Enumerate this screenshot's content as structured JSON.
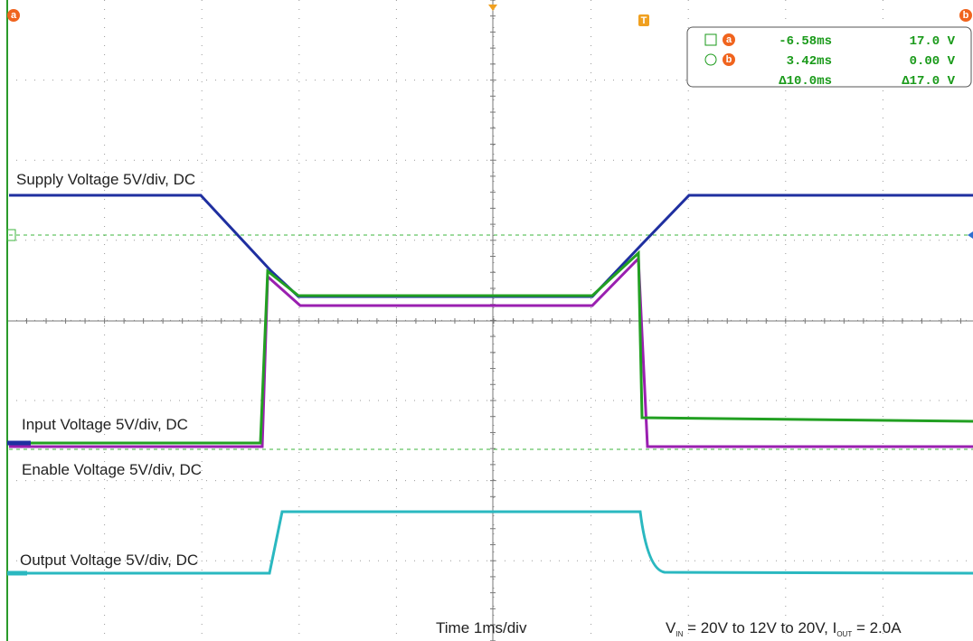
{
  "labels": {
    "supply": "Supply Voltage 5V/div, DC",
    "input": "Input Voltage 5V/div, DC",
    "enable": "Enable Voltage 5V/div, DC",
    "output": "Output Voltage 5V/div, DC",
    "time": "Time 1ms/div"
  },
  "caption": {
    "v": "V",
    "v_sub": "IN",
    "middle": " = 20V to 12V to 20V, I",
    "i_sub": "OUT",
    "end": " = 2.0A"
  },
  "markers": {
    "a": "a",
    "b": "b",
    "trigger": "T"
  },
  "readout": {
    "rows": [
      [
        "-6.58ms",
        "17.0 V"
      ],
      [
        "3.42ms",
        "0.00 V"
      ],
      [
        "Δ10.0ms",
        "Δ17.0 V"
      ]
    ]
  }
}
